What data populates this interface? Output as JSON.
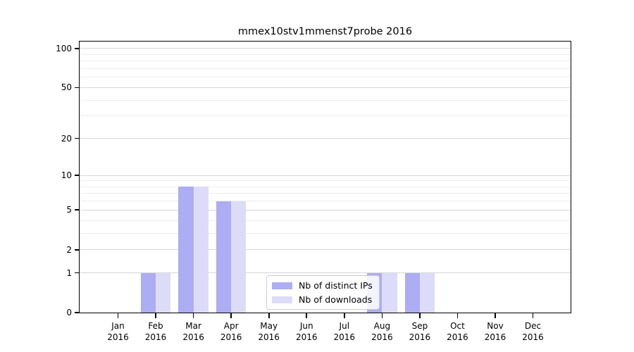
{
  "chart_data": {
    "type": "bar",
    "title": "mmex10stv1mmenst7probe 2016",
    "categories": [
      "Jan",
      "Feb",
      "Mar",
      "Apr",
      "May",
      "Jun",
      "Jul",
      "Aug",
      "Sep",
      "Oct",
      "Nov",
      "Dec"
    ],
    "category_year": "2016",
    "series": [
      {
        "name": "Nb of distinct IPs",
        "color": "#adadf3",
        "values": [
          0,
          1,
          8,
          6,
          0,
          0,
          0,
          1,
          1,
          0,
          0,
          0
        ]
      },
      {
        "name": "Nb of downloads",
        "color": "#dcdcf8",
        "values": [
          0,
          1,
          8,
          6,
          0,
          0,
          0,
          1,
          1,
          0,
          0,
          0
        ]
      }
    ],
    "xlabel": "",
    "ylabel": "",
    "yscale": "log1p",
    "ylim": [
      0,
      113
    ],
    "y_tick_values": [
      100,
      50,
      20,
      10,
      5,
      2,
      1,
      0
    ],
    "y_tick_labels": [
      "100",
      "50",
      "20",
      "10",
      "5",
      "2",
      "1",
      "0"
    ],
    "y_major_gridline_values": [
      1,
      2,
      5,
      10,
      20,
      50,
      100
    ],
    "y_minor_gridline_values": [
      3,
      4,
      6,
      7,
      8,
      9,
      30,
      40,
      60,
      70,
      80,
      90
    ],
    "grid": "horizontal",
    "legend_position": "lower center"
  },
  "colors": {
    "background": "#ffffff",
    "axis": "#000000",
    "grid_major": "#d6d6d6",
    "grid_minor": "#ececec",
    "legend_border": "#cccccc",
    "bar_distinct_ips": "#adadf3",
    "bar_downloads": "#dcdcf8"
  }
}
